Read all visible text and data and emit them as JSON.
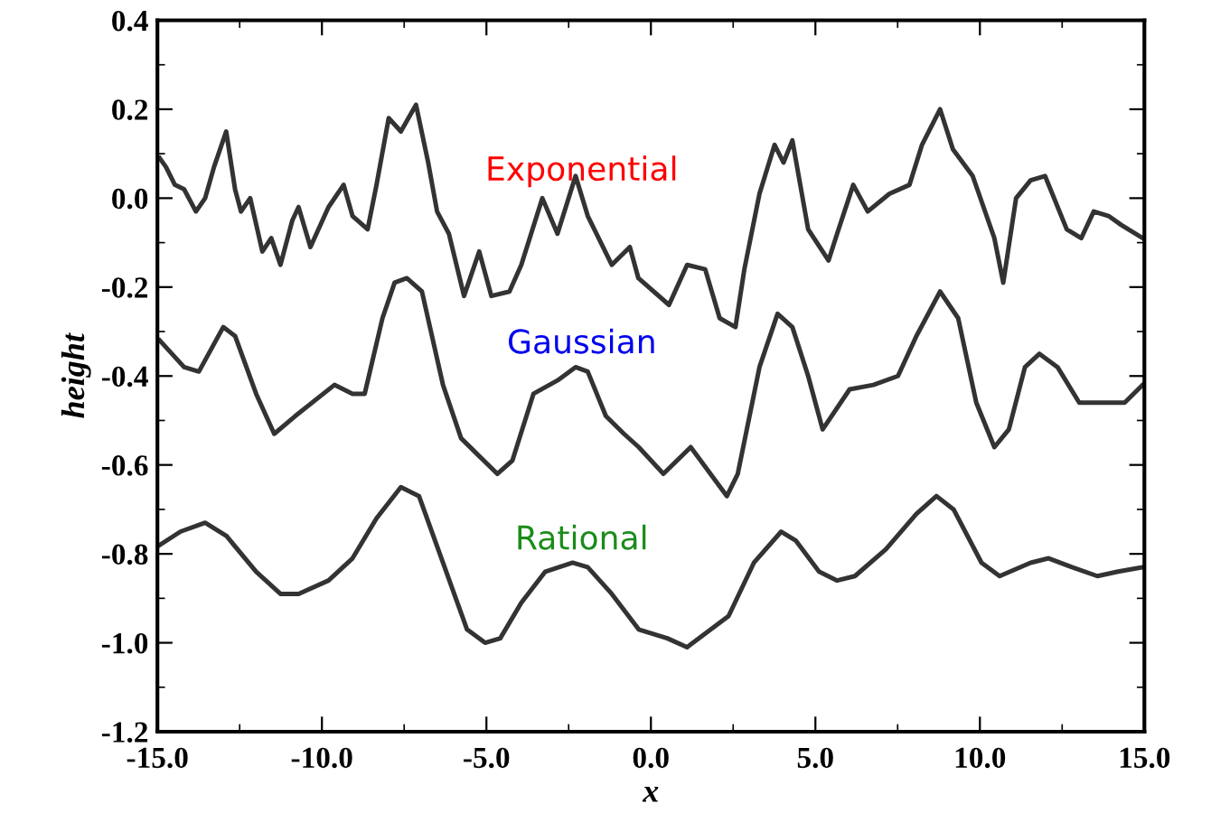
{
  "chart_data": {
    "type": "line",
    "xlabel": "x",
    "ylabel": "height",
    "xlim": [
      -15,
      15
    ],
    "ylim": [
      -1.2,
      0.4
    ],
    "xticks": [
      {
        "value": -15,
        "label": "-15.0"
      },
      {
        "value": -10,
        "label": "-10.0"
      },
      {
        "value": -5,
        "label": "-5.0"
      },
      {
        "value": 0,
        "label": "0.0"
      },
      {
        "value": 5,
        "label": "5.0"
      },
      {
        "value": 10,
        "label": "10.0"
      },
      {
        "value": 15,
        "label": "15.0"
      }
    ],
    "yticks": [
      {
        "value": -1.2,
        "label": "-1.2"
      },
      {
        "value": -1.0,
        "label": "-1.0"
      },
      {
        "value": -0.8,
        "label": "-0.8"
      },
      {
        "value": -0.6,
        "label": "-0.6"
      },
      {
        "value": -0.4,
        "label": "-0.4"
      },
      {
        "value": -0.2,
        "label": "-0.2"
      },
      {
        "value": 0,
        "label": "0.0"
      },
      {
        "value": 0.2,
        "label": "0.2"
      },
      {
        "value": 0.4,
        "label": "0.4"
      }
    ],
    "grid": false,
    "legend": false,
    "marker": "none",
    "line_style": "solid",
    "series": [
      {
        "name": "Exponential",
        "color": "#333333",
        "x": [
          -14.93,
          -14.74,
          -14.47,
          -14.19,
          -13.83,
          -13.55,
          -13.28,
          -12.91,
          -12.64,
          -12.46,
          -12.18,
          -11.81,
          -11.54,
          -11.26,
          -10.9,
          -10.71,
          -10.35,
          -9.8,
          -9.34,
          -9.07,
          -8.61,
          -8.34,
          -7.97,
          -7.6,
          -7.14,
          -6.77,
          -6.5,
          -6.14,
          -5.68,
          -5.22,
          -4.85,
          -4.3,
          -3.94,
          -3.3,
          -2.84,
          -2.29,
          -1.92,
          -1.19,
          -0.64,
          -0.38,
          0.55,
          1.1,
          1.65,
          2.09,
          2.57,
          2.84,
          3.3,
          3.76,
          4.03,
          4.3,
          4.78,
          5.4,
          5.66,
          6.15,
          6.59,
          7.25,
          7.86,
          8.24,
          8.79,
          9.18,
          9.78,
          10.44,
          10.71,
          11.1,
          11.54,
          11.98,
          12.64,
          13.08,
          13.46,
          13.91,
          14.29,
          14.95
        ],
        "values": [
          0.09,
          0.07,
          0.03,
          0.02,
          -0.03,
          0.0,
          0.07,
          0.15,
          0.02,
          -0.03,
          0.0,
          -0.12,
          -0.09,
          -0.15,
          -0.05,
          -0.02,
          -0.11,
          -0.02,
          0.03,
          -0.04,
          -0.07,
          0.03,
          0.18,
          0.15,
          0.21,
          0.08,
          -0.03,
          -0.08,
          -0.22,
          -0.12,
          -0.22,
          -0.21,
          -0.15,
          0.0,
          -0.08,
          0.05,
          -0.04,
          -0.15,
          -0.11,
          -0.18,
          -0.24,
          -0.15,
          -0.16,
          -0.27,
          -0.29,
          -0.16,
          0.01,
          0.12,
          0.08,
          0.13,
          -0.07,
          -0.14,
          -0.08,
          0.03,
          -0.03,
          0.01,
          0.03,
          0.12,
          0.2,
          0.11,
          0.05,
          -0.09,
          -0.19,
          0.0,
          0.04,
          0.05,
          -0.07,
          -0.09,
          -0.03,
          -0.04,
          -0.06,
          -0.09
        ]
      },
      {
        "name": "Gaussian",
        "color": "#333333",
        "x": [
          -14.93,
          -14.19,
          -13.74,
          -13.0,
          -12.64,
          -12.0,
          -11.45,
          -10.81,
          -9.62,
          -9.07,
          -8.7,
          -8.16,
          -7.79,
          -7.42,
          -6.96,
          -6.32,
          -5.77,
          -5.22,
          -4.67,
          -4.21,
          -3.57,
          -2.84,
          -2.29,
          -1.92,
          -1.37,
          -0.82,
          -0.37,
          0.38,
          1.21,
          2.31,
          2.64,
          3.3,
          3.85,
          4.3,
          4.78,
          5.22,
          6.04,
          6.76,
          7.51,
          8.07,
          8.79,
          9.34,
          9.89,
          10.44,
          10.88,
          11.37,
          11.81,
          12.36,
          13.02,
          14.4,
          14.95
        ],
        "values": [
          -0.32,
          -0.38,
          -0.39,
          -0.29,
          -0.31,
          -0.44,
          -0.53,
          -0.49,
          -0.42,
          -0.44,
          -0.44,
          -0.27,
          -0.19,
          -0.18,
          -0.21,
          -0.42,
          -0.54,
          -0.58,
          -0.62,
          -0.59,
          -0.44,
          -0.41,
          -0.38,
          -0.39,
          -0.49,
          -0.53,
          -0.56,
          -0.62,
          -0.56,
          -0.67,
          -0.62,
          -0.38,
          -0.26,
          -0.29,
          -0.4,
          -0.52,
          -0.43,
          -0.42,
          -0.4,
          -0.31,
          -0.21,
          -0.27,
          -0.46,
          -0.56,
          -0.52,
          -0.38,
          -0.35,
          -0.38,
          -0.46,
          -0.46,
          -0.42
        ]
      },
      {
        "name": "Rational",
        "color": "#333333",
        "x": [
          -14.93,
          -14.3,
          -13.55,
          -12.9,
          -12.0,
          -11.26,
          -10.71,
          -9.8,
          -9.07,
          -8.34,
          -7.6,
          -7.05,
          -6.32,
          -5.59,
          -5.04,
          -4.58,
          -3.94,
          -3.21,
          -2.38,
          -1.92,
          -1.19,
          -0.37,
          0.5,
          1.1,
          2.36,
          3.13,
          3.96,
          4.4,
          5.11,
          5.66,
          6.2,
          7.14,
          8.07,
          8.68,
          9.2,
          10.05,
          10.6,
          11.54,
          12.09,
          12.8,
          13.57,
          14.2,
          14.95
        ],
        "values": [
          -0.78,
          -0.75,
          -0.73,
          -0.76,
          -0.84,
          -0.89,
          -0.89,
          -0.86,
          -0.81,
          -0.72,
          -0.65,
          -0.67,
          -0.82,
          -0.97,
          -1.0,
          -0.99,
          -0.91,
          -0.84,
          -0.82,
          -0.83,
          -0.89,
          -0.97,
          -0.99,
          -1.01,
          -0.94,
          -0.82,
          -0.75,
          -0.77,
          -0.84,
          -0.86,
          -0.85,
          -0.79,
          -0.71,
          -0.67,
          -0.7,
          -0.82,
          -0.85,
          -0.82,
          -0.81,
          -0.83,
          -0.85,
          -0.84,
          -0.83
        ]
      }
    ]
  }
}
